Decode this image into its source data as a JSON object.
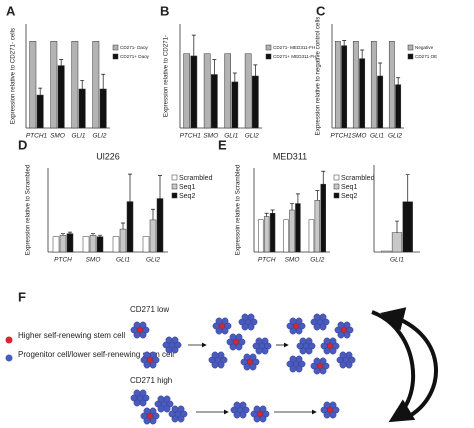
{
  "panel_labels": [
    "A",
    "B",
    "C",
    "D",
    "E",
    "F"
  ],
  "chart_data": [
    {
      "type": "bar",
      "ylabel": "Expression relative to CD271- cells",
      "categories": [
        "PTCH1",
        "SMO",
        "GLI1",
        "GLI2"
      ],
      "ylim": [
        0,
        1.2
      ],
      "series": [
        {
          "name": "CD271- Daoy",
          "color": "#b3b3b3",
          "values": [
            1,
            1,
            1,
            1
          ]
        },
        {
          "name": "CD271+ Daoy",
          "color": "#111111",
          "values": [
            0.38,
            0.72,
            0.45,
            0.45
          ],
          "errors": [
            0.08,
            0.07,
            0.1,
            0.17
          ]
        }
      ]
    },
    {
      "type": "bar",
      "ylabel": "Expression relative to CD271-",
      "categories": [
        "PTCH1",
        "SMO",
        "GLI1",
        "GLI2"
      ],
      "ylim": [
        0,
        1.4
      ],
      "series": [
        {
          "name": "CD271- MED311-FH",
          "color": "#b3b3b3",
          "values": [
            1,
            1,
            1,
            1
          ]
        },
        {
          "name": "CD271+ MED311-FH",
          "color": "#111111",
          "values": [
            0.97,
            0.72,
            0.62,
            0.7
          ],
          "errors": [
            0.28,
            0.2,
            0.12,
            0.15
          ]
        }
      ]
    },
    {
      "type": "bar",
      "ylabel": "Expression relative to negative control cells",
      "categories": [
        "PTCH1",
        "SMO",
        "GLI1",
        "GLI2"
      ],
      "ylim": [
        0,
        1.2
      ],
      "series": [
        {
          "name": "Negative",
          "color": "#b3b3b3",
          "values": [
            1,
            1,
            1,
            1
          ]
        },
        {
          "name": "CD271 OE",
          "color": "#111111",
          "values": [
            0.95,
            0.8,
            0.6,
            0.5
          ],
          "errors": [
            0.06,
            0.1,
            0.15,
            0.08
          ]
        }
      ]
    },
    {
      "type": "bar",
      "title": "Ul226",
      "ylabel": "Expression relative to Scrambled",
      "categories": [
        "PTCH",
        "SMO",
        "GLI1",
        "GLI2"
      ],
      "ylim": [
        0,
        5.5
      ],
      "series": [
        {
          "name": "Scrambled",
          "color": "#ffffff",
          "values": [
            1,
            1,
            1,
            1
          ]
        },
        {
          "name": "Seq1",
          "color": "#c8c8c8",
          "values": [
            1.1,
            1.1,
            1.5,
            2.1
          ],
          "errors": [
            0.1,
            0.1,
            0.4,
            0.7
          ]
        },
        {
          "name": "Seq2",
          "color": "#111111",
          "values": [
            1.2,
            1,
            3.3,
            3.5
          ],
          "errors": [
            0.1,
            0.1,
            1.8,
            1.5
          ]
        }
      ]
    },
    {
      "type": "bar",
      "title": "MED311",
      "ylabel": "Expressoin relative to Scrambled",
      "categories": [
        "PTCH",
        "SMO",
        "GLI2"
      ],
      "ylim": [
        0,
        2.6
      ],
      "series": [
        {
          "name": "Scrambled",
          "color": "#ffffff",
          "values": [
            1,
            1,
            1
          ]
        },
        {
          "name": "Seq1",
          "color": "#c8c8c8",
          "values": [
            1.1,
            1.3,
            1.6
          ],
          "errors": [
            0.1,
            0.2,
            0.3
          ]
        },
        {
          "name": "Seq2",
          "color": "#111111",
          "values": [
            1.2,
            1.5,
            2.1
          ],
          "errors": [
            0.1,
            0.3,
            0.4
          ]
        }
      ]
    },
    {
      "type": "bar",
      "categories": [
        "GLI1"
      ],
      "ylim": [
        0,
        90
      ],
      "series": [
        {
          "color": "#ffffff",
          "values": [
            1
          ]
        },
        {
          "color": "#c8c8c8",
          "values": [
            20
          ],
          "errors": [
            12
          ]
        },
        {
          "color": "#111111",
          "values": [
            52
          ],
          "errors": [
            28
          ]
        }
      ]
    }
  ],
  "diagram": {
    "legend": [
      "Higher self-renewing stem cell",
      "Progenitor cell/lower self-renewing stem cell"
    ],
    "rows": [
      "CD271 low",
      "CD271 high"
    ]
  }
}
